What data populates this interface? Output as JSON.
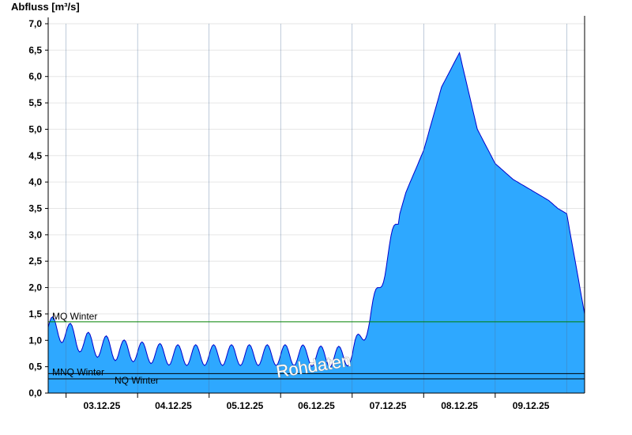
{
  "chart_data": {
    "type": "area",
    "ylabel": "Abfluss [m³/s]",
    "xlabel": "",
    "title": "",
    "ylim": [
      0,
      7
    ],
    "yticks": [
      "0,0",
      "0,5",
      "1,0",
      "1,5",
      "2,0",
      "2,5",
      "3,0",
      "3,5",
      "4,0",
      "4,5",
      "5,0",
      "5,5",
      "6,0",
      "6,5",
      "7,0"
    ],
    "x_start": "02.12.25 18:00",
    "x_end": "09.12.25 24:00",
    "xticks": [
      "03.12.25",
      "04.12.25",
      "05.12.25",
      "06.12.25",
      "07.12.25",
      "08.12.25",
      "09.12.25"
    ],
    "grid": "horizontal",
    "colors": {
      "fill": "#2ea8ff",
      "line": "#0000cc",
      "mq_line": "#008000",
      "nq_line": "#000000"
    },
    "watermark": "Rohdaten",
    "reference_lines": [
      {
        "label": "MQ Winter",
        "value": 1.35
      },
      {
        "label": "MNQ Winter",
        "value": 0.37
      },
      {
        "label": "NQ Winter",
        "value": 0.27
      }
    ],
    "series": [
      {
        "hours": [
          0,
          6,
          12,
          18,
          24,
          30,
          36,
          42,
          48,
          54,
          60,
          66,
          72,
          78,
          84,
          90,
          96,
          102,
          108,
          114,
          120,
          126,
          132,
          138,
          144,
          150,
          156,
          162,
          168,
          171,
          174,
          180
        ],
        "values": [
          1.25,
          1.15,
          0.95,
          0.88,
          0.82,
          0.78,
          0.75,
          0.72,
          0.72,
          0.72,
          0.72,
          0.72,
          0.72,
          0.72,
          0.72,
          0.7,
          0.68,
          0.72,
          1.4,
          2.6,
          3.8,
          4.6,
          5.8,
          6.45,
          5.0,
          4.35,
          4.05,
          3.85,
          3.65,
          3.5,
          3.4,
          1.5
        ],
        "dates": [
          "02.12.25 18:00",
          "03.12.25 00:00",
          "03.12.25 06:00",
          "03.12.25 12:00",
          "03.12.25 18:00",
          "04.12.25 00:00",
          "04.12.25 06:00",
          "04.12.25 12:00",
          "04.12.25 18:00",
          "05.12.25 00:00",
          "05.12.25 06:00",
          "05.12.25 12:00",
          "05.12.25 18:00",
          "06.12.25 00:00",
          "06.12.25 06:00",
          "06.12.25 12:00",
          "06.12.25 18:00",
          "07.12.25 00:00",
          "07.12.25 06:00",
          "07.12.25 12:00",
          "07.12.25 18:00",
          "08.12.25 00:00",
          "08.12.25 06:00",
          "08.12.25 12:00",
          "08.12.25 18:00",
          "09.12.25 00:00",
          "09.12.25 06:00",
          "09.12.25 12:00",
          "09.12.25 18:00",
          "09.12.25 21:00",
          "10.12.25 00:00",
          "10.12.25 06:00"
        ]
      }
    ]
  }
}
